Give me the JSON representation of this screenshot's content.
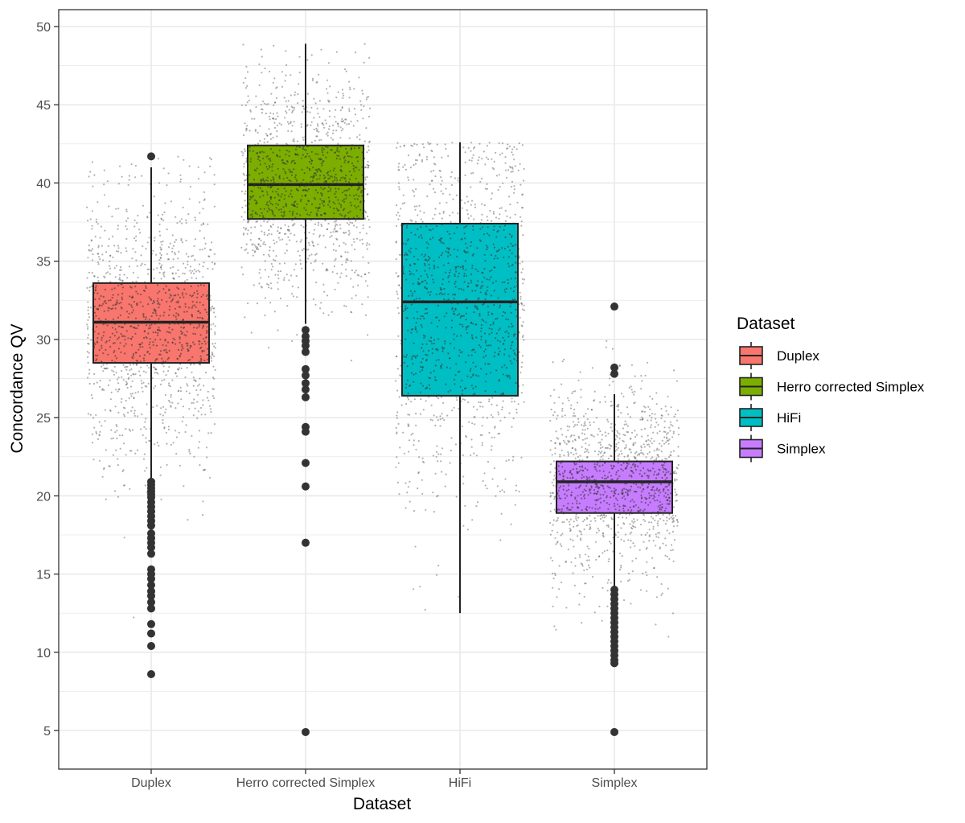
{
  "chart_data": {
    "type": "boxplot",
    "xlabel": "Dataset",
    "ylabel": "Concordance QV",
    "ylim": [
      3.5,
      51
    ],
    "yticks": [
      5,
      10,
      15,
      20,
      25,
      30,
      35,
      40,
      45,
      50
    ],
    "grid": true,
    "legend": {
      "title": "Dataset",
      "placement": "right",
      "entries": [
        {
          "label": "Duplex",
          "color": "#F8766D"
        },
        {
          "label": "Herro corrected Simplex",
          "color": "#7CAE00"
        },
        {
          "label": "HiFi",
          "color": "#00BFC4"
        },
        {
          "label": "Simplex",
          "color": "#C77CFF"
        }
      ]
    },
    "categories": [
      "Duplex",
      "Herro corrected Simplex",
      "HiFi",
      "Simplex"
    ],
    "series": [
      {
        "name": "Duplex",
        "color": "#F8766D",
        "whisker_low": 21.0,
        "q1": 28.5,
        "median": 31.1,
        "q3": 33.6,
        "whisker_high": 41.0,
        "outliers": [
          41.7,
          20.9,
          20.7,
          20.5,
          20.3,
          20.1,
          19.9,
          19.6,
          19.3,
          19.0,
          18.7,
          18.4,
          18.1,
          17.6,
          17.3,
          17.0,
          16.7,
          16.3,
          15.3,
          15.0,
          14.7,
          14.3,
          13.9,
          13.6,
          13.2,
          12.8,
          11.8,
          11.2,
          10.4,
          8.6
        ],
        "points": {
          "count": 1200,
          "spread": [
            8.6,
            41.7
          ],
          "center": 31.1,
          "sd": 4.5
        }
      },
      {
        "name": "Herro corrected Simplex",
        "color": "#7CAE00",
        "whisker_low": 31.0,
        "q1": 37.7,
        "median": 39.9,
        "q3": 42.4,
        "whisker_high": 48.9,
        "outliers": [
          30.6,
          30.2,
          29.9,
          29.6,
          29.2,
          28.1,
          27.7,
          27.2,
          26.8,
          26.3,
          24.4,
          24.1,
          22.1,
          20.6,
          17.0,
          4.9
        ],
        "points": {
          "count": 1200,
          "spread": [
            4.9,
            48.9
          ],
          "center": 39.9,
          "sd": 3.6
        }
      },
      {
        "name": "HiFi",
        "color": "#00BFC4",
        "whisker_low": 12.5,
        "q1": 26.4,
        "median": 32.4,
        "q3": 37.4,
        "whisker_high": 42.6,
        "outliers": [],
        "points": {
          "count": 1200,
          "spread": [
            12.5,
            42.6
          ],
          "center": 32.4,
          "sd": 6.5
        }
      },
      {
        "name": "Simplex",
        "color": "#C77CFF",
        "whisker_low": 14.0,
        "q1": 18.9,
        "median": 20.9,
        "q3": 22.2,
        "whisker_high": 26.5,
        "outliers": [
          32.1,
          28.2,
          27.8,
          14.0,
          13.7,
          13.4,
          13.1,
          12.8,
          12.5,
          12.2,
          11.9,
          11.6,
          11.3,
          11.0,
          10.7,
          10.4,
          10.1,
          9.8,
          9.5,
          9.3,
          4.9
        ],
        "points": {
          "count": 1200,
          "spread": [
            4.9,
            32.1
          ],
          "center": 20.9,
          "sd": 3.0
        }
      }
    ]
  }
}
